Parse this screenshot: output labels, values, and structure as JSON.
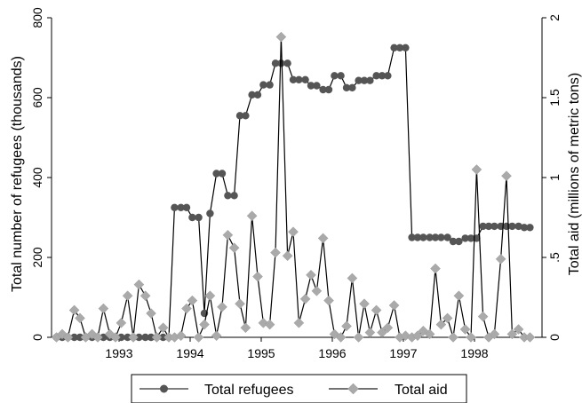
{
  "chart_data": {
    "type": "line",
    "title": "",
    "xlabel": "",
    "ylabel_left": "Total number of refugees (thousands)",
    "ylabel_right": "Total aid (millions of metric tons)",
    "x_ticks": [
      "1993",
      "1994",
      "1995",
      "1996",
      "1997",
      "1998"
    ],
    "y_left_ticks": [
      "0",
      "200",
      "400",
      "600",
      "800"
    ],
    "y_right_ticks": [
      "0",
      ".5",
      "1",
      "1.5",
      "2"
    ],
    "xlim": [
      1992.05,
      1998.95
    ],
    "ylim_left": [
      0,
      800
    ],
    "ylim_right": [
      0,
      2
    ],
    "grid": false,
    "legend_position": "bottom",
    "series": [
      {
        "name": "Total refugees",
        "axis": "left",
        "color": "#555555",
        "marker": "circle",
        "x": [
          1992.12,
          1992.2,
          1992.28,
          1992.37,
          1992.45,
          1992.53,
          1992.62,
          1992.7,
          1992.78,
          1992.87,
          1992.95,
          1993.03,
          1993.12,
          1993.2,
          1993.28,
          1993.37,
          1993.45,
          1993.53,
          1993.62,
          1993.7,
          1993.78,
          1993.87,
          1993.95,
          1994.03,
          1994.12,
          1994.2,
          1994.28,
          1994.37,
          1994.45,
          1994.53,
          1994.62,
          1994.7,
          1994.78,
          1994.87,
          1994.95,
          1995.03,
          1995.12,
          1995.2,
          1995.28,
          1995.37,
          1995.45,
          1995.53,
          1995.62,
          1995.7,
          1995.78,
          1995.87,
          1995.95,
          1996.03,
          1996.12,
          1996.2,
          1996.28,
          1996.37,
          1996.45,
          1996.53,
          1996.62,
          1996.7,
          1996.78,
          1996.87,
          1996.95,
          1997.03,
          1997.12,
          1997.2,
          1997.28,
          1997.37,
          1997.45,
          1997.53,
          1997.62,
          1997.7,
          1997.78,
          1997.87,
          1997.95,
          1998.03,
          1998.12,
          1998.2,
          1998.28,
          1998.37,
          1998.45,
          1998.53,
          1998.62,
          1998.7,
          1998.78
        ],
        "values": [
          0,
          0,
          0,
          0,
          0,
          0,
          0,
          0,
          0,
          0,
          0,
          0,
          0,
          0,
          0,
          0,
          0,
          0,
          0,
          0,
          325,
          325,
          325,
          300,
          300,
          60,
          310,
          410,
          410,
          355,
          355,
          555,
          555,
          607,
          607,
          632,
          632,
          686,
          686,
          686,
          645,
          645,
          645,
          630,
          630,
          620,
          620,
          655,
          655,
          625,
          625,
          643,
          643,
          643,
          655,
          655,
          655,
          725,
          725,
          725,
          250,
          250,
          250,
          250,
          250,
          250,
          250,
          240,
          240,
          248,
          248,
          248,
          278,
          278,
          278,
          278,
          278,
          278,
          278,
          275,
          275
        ]
      },
      {
        "name": "Total aid",
        "axis": "right",
        "color": "#aaaaaa",
        "marker": "diamond",
        "x": [
          1992.12,
          1992.2,
          1992.28,
          1992.37,
          1992.45,
          1992.53,
          1992.62,
          1992.7,
          1992.78,
          1992.87,
          1992.95,
          1993.03,
          1993.12,
          1993.2,
          1993.28,
          1993.37,
          1993.45,
          1993.53,
          1993.62,
          1993.7,
          1993.78,
          1993.87,
          1993.95,
          1994.03,
          1994.12,
          1994.2,
          1994.28,
          1994.37,
          1994.45,
          1994.53,
          1994.62,
          1994.7,
          1994.78,
          1994.87,
          1994.95,
          1995.03,
          1995.12,
          1995.2,
          1995.28,
          1995.37,
          1995.45,
          1995.53,
          1995.62,
          1995.7,
          1995.78,
          1995.87,
          1995.95,
          1996.03,
          1996.12,
          1996.2,
          1996.28,
          1996.37,
          1996.45,
          1996.53,
          1996.62,
          1996.7,
          1996.78,
          1996.87,
          1996.95,
          1997.03,
          1997.12,
          1997.2,
          1997.28,
          1997.37,
          1997.45,
          1997.53,
          1997.62,
          1997.7,
          1997.78,
          1997.87,
          1997.95,
          1998.03,
          1998.12,
          1998.2,
          1998.28,
          1998.37,
          1998.45,
          1998.53,
          1998.62,
          1998.7,
          1998.78
        ],
        "values": [
          0.0,
          0.02,
          0.0,
          0.17,
          0.12,
          0.0,
          0.02,
          0.0,
          0.18,
          0.02,
          0.0,
          0.09,
          0.26,
          0.0,
          0.33,
          0.26,
          0.15,
          0.0,
          0.06,
          0.0,
          0.0,
          0.01,
          0.18,
          0.23,
          0.0,
          0.08,
          0.26,
          0.01,
          0.19,
          0.64,
          0.56,
          0.21,
          0.06,
          0.76,
          0.38,
          0.09,
          0.08,
          0.53,
          1.88,
          0.51,
          0.66,
          0.09,
          0.24,
          0.39,
          0.29,
          0.62,
          0.23,
          0.02,
          0.0,
          0.07,
          0.37,
          0.0,
          0.21,
          0.03,
          0.17,
          0.03,
          0.06,
          0.2,
          0.0,
          0.01,
          0.0,
          0.01,
          0.04,
          0.02,
          0.43,
          0.08,
          0.12,
          0.0,
          0.26,
          0.05,
          0.0,
          1.05,
          0.13,
          0.0,
          0.02,
          0.49,
          1.01,
          0.02,
          0.05,
          0.0,
          0.0
        ]
      }
    ]
  }
}
